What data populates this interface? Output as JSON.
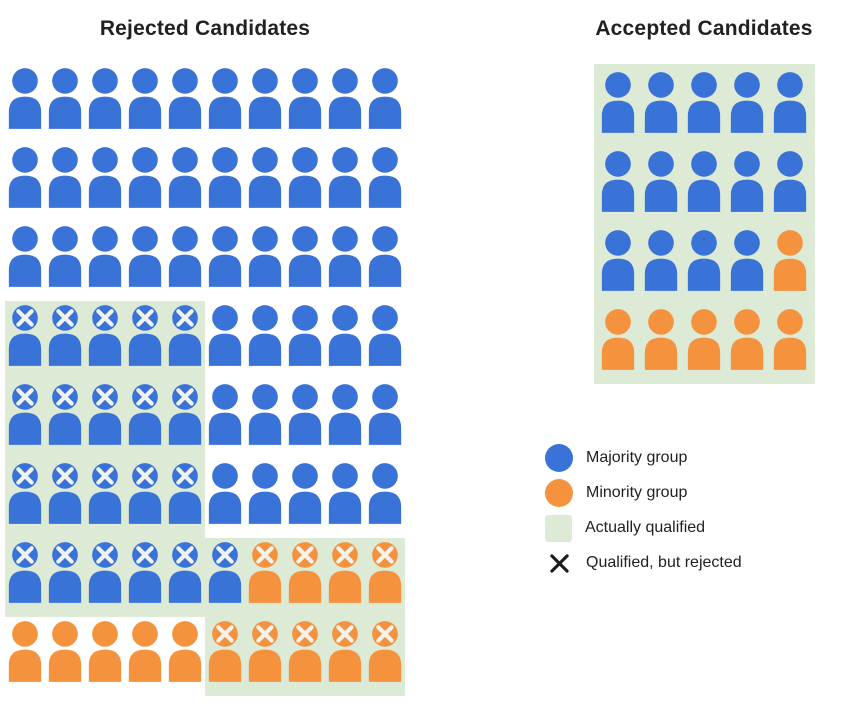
{
  "colors": {
    "majority_blue": "#3a73d8",
    "minority_orange": "#f5923e",
    "qualified_green": "#dcead6",
    "x_on_person": "#f1f3ef",
    "legend_x": "#1b1b1b",
    "text": "#202124"
  },
  "rejected": {
    "title": "Rejected Candidates",
    "rows": [
      [
        "B",
        "B",
        "B",
        "B",
        "B",
        "B",
        "B",
        "B",
        "B",
        "B"
      ],
      [
        "B",
        "B",
        "B",
        "B",
        "B",
        "B",
        "B",
        "B",
        "B",
        "B"
      ],
      [
        "B",
        "B",
        "B",
        "B",
        "B",
        "B",
        "B",
        "B",
        "B",
        "B"
      ],
      [
        "BXQ",
        "BXQ",
        "BXQ",
        "BXQ",
        "BXQ",
        "B",
        "B",
        "B",
        "B",
        "B"
      ],
      [
        "BXQ",
        "BXQ",
        "BXQ",
        "BXQ",
        "BXQ",
        "B",
        "B",
        "B",
        "B",
        "B"
      ],
      [
        "BXQ",
        "BXQ",
        "BXQ",
        "BXQ",
        "BXQ",
        "B",
        "B",
        "B",
        "B",
        "B"
      ],
      [
        "BXQ",
        "BXQ",
        "BXQ",
        "BXQ",
        "BXQ",
        "BXQ",
        "OXQ",
        "OXQ",
        "OXQ",
        "OXQ"
      ],
      [
        "O",
        "O",
        "O",
        "O",
        "O",
        "OXQ",
        "OXQ",
        "OXQ",
        "OXQ",
        "OXQ"
      ]
    ]
  },
  "accepted": {
    "title": "Accepted Candidates",
    "rows": [
      [
        "BQ",
        "BQ",
        "BQ",
        "BQ",
        "BQ"
      ],
      [
        "BQ",
        "BQ",
        "BQ",
        "BQ",
        "BQ"
      ],
      [
        "BQ",
        "BQ",
        "BQ",
        "BQ",
        "OQ"
      ],
      [
        "OQ",
        "OQ",
        "OQ",
        "OQ",
        "OQ"
      ]
    ]
  },
  "counts": {
    "rejected": {
      "total": 80,
      "majority": 66,
      "minority": 14,
      "qualified_but_rejected": 30
    },
    "accepted": {
      "total": 20,
      "majority": 14,
      "minority": 6
    }
  },
  "legend": {
    "items": [
      {
        "swatch": "circle-blue",
        "label": "Majority group"
      },
      {
        "swatch": "circle-orange",
        "label": "Minority group"
      },
      {
        "swatch": "square-green",
        "label": "Actually qualified"
      },
      {
        "swatch": "x-mark",
        "label": "Qualified, but rejected"
      }
    ]
  }
}
